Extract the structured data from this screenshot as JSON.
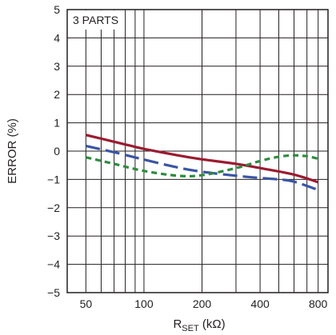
{
  "chart_data": {
    "type": "line",
    "x_scale": "log",
    "xlim": [
      40,
      900
    ],
    "ylim": [
      -5,
      5
    ],
    "grid": true,
    "legend": "none",
    "x_ticks": [
      50,
      100,
      200,
      400,
      800
    ],
    "x_tick_labels": [
      "50",
      "100",
      "200",
      "400",
      "800"
    ],
    "y_ticks": [
      5,
      4,
      3,
      2,
      1,
      0,
      -1,
      -2,
      -3,
      -4,
      -5
    ],
    "y_tick_labels": [
      "5",
      "4",
      "3",
      "2",
      "1",
      "0",
      "−1",
      "−2",
      "−3",
      "−4",
      "−5"
    ],
    "ylabel": "ERROR (%)",
    "xlabel_main": "R",
    "xlabel_sub": "SET",
    "xlabel_tail": " (kΩ)",
    "annotation": "3 PARTS",
    "series": [
      {
        "color": "#9b1b30",
        "dash": "solid",
        "x": [
          50,
          70,
          100,
          150,
          200,
          300,
          400,
          600,
          800
        ],
        "y": [
          0.57,
          0.33,
          0.08,
          -0.15,
          -0.29,
          -0.45,
          -0.6,
          -0.83,
          -1.1
        ]
      },
      {
        "color": "#3a55a4",
        "dash": "long",
        "x": [
          50,
          70,
          100,
          150,
          200,
          300,
          400,
          500,
          600,
          800
        ],
        "y": [
          0.18,
          -0.04,
          -0.3,
          -0.58,
          -0.73,
          -0.87,
          -0.95,
          -1.0,
          -1.08,
          -1.37
        ]
      },
      {
        "color": "#2e8b3e",
        "dash": "short",
        "x": [
          50,
          70,
          100,
          150,
          200,
          300,
          400,
          500,
          600,
          700,
          800
        ],
        "y": [
          -0.22,
          -0.45,
          -0.7,
          -0.87,
          -0.85,
          -0.6,
          -0.35,
          -0.2,
          -0.15,
          -0.18,
          -0.27
        ]
      }
    ]
  }
}
